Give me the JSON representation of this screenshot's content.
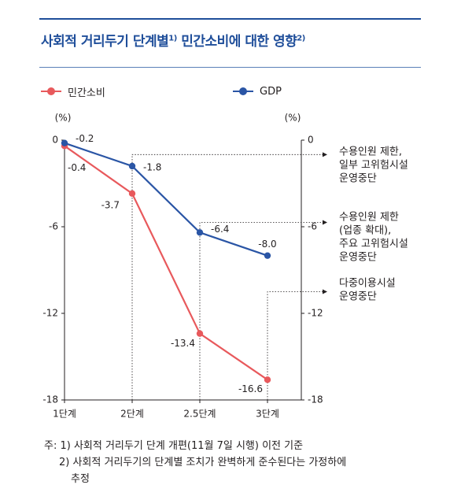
{
  "title": {
    "text": "사회적 거리두기 단계별",
    "sup1": "1)",
    "text2": " 민간소비에 대한 영향",
    "sup2": "2)"
  },
  "colors": {
    "consumption": "#e8595c",
    "gdp": "#2a55a5",
    "axis": "#231f20",
    "guide": "#231f20"
  },
  "chart_data": {
    "type": "line",
    "categories": [
      "1단계",
      "2단계",
      "2.5단계",
      "3단계"
    ],
    "series": [
      {
        "name": "민간소비",
        "values": [
          -0.4,
          -3.7,
          -13.4,
          -16.6
        ],
        "labels": [
          "-0.4",
          "-3.7",
          "-13.4",
          "-16.6"
        ]
      },
      {
        "name": "GDP",
        "values": [
          -0.2,
          -1.8,
          -6.4,
          -8.0
        ],
        "labels": [
          "-0.2",
          "-1.8",
          "-6.4",
          "-8.0"
        ]
      }
    ],
    "ylim": [
      -18,
      0
    ],
    "yticks": [
      "0",
      "-6",
      "-12",
      "-18"
    ],
    "yunit_left": "(%)",
    "yunit_right": "(%)",
    "annotations": [
      {
        "from_category": 1,
        "lines": [
          "수용인원 제한,",
          "일부 고위험시설",
          "운영중단"
        ]
      },
      {
        "from_category": 2,
        "lines": [
          "수용인원 제한",
          "(업종 확대),",
          "주요 고위험시설",
          "운영중단"
        ]
      },
      {
        "from_category": 3,
        "lines": [
          "다중이용시설",
          "운영중단"
        ]
      }
    ],
    "grid": false,
    "legend": "top-left"
  },
  "notes": [
    "주: 1) 사회적 거리두기 단계 개편(11월 7일 시행) 이전 기준",
    "2) 사회적 거리두기의 단계별 조치가 완벽하게 준수된다는 가정하에",
    "추정"
  ]
}
